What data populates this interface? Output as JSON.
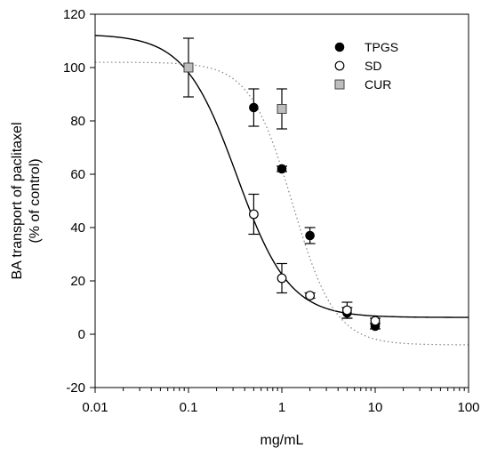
{
  "chart_data": {
    "type": "scatter",
    "title": "",
    "xlabel": "mg/mL",
    "ylabel_lines": [
      "BA transport of paclitaxel",
      "(% of control)"
    ],
    "x_scale": "log",
    "xlim": [
      0.01,
      100
    ],
    "ylim": [
      -20,
      120
    ],
    "x_ticks": [
      {
        "value": 0.01,
        "label": "0.01"
      },
      {
        "value": 0.1,
        "label": "0.1"
      },
      {
        "value": 1,
        "label": "1"
      },
      {
        "value": 10,
        "label": "10"
      },
      {
        "value": 100,
        "label": "100"
      }
    ],
    "y_ticks": [
      {
        "value": -20,
        "label": "-20"
      },
      {
        "value": 0,
        "label": "0"
      },
      {
        "value": 20,
        "label": "20"
      },
      {
        "value": 40,
        "label": "40"
      },
      {
        "value": 60,
        "label": "60"
      },
      {
        "value": 80,
        "label": "80"
      },
      {
        "value": 100,
        "label": "100"
      },
      {
        "value": 120,
        "label": "120"
      }
    ],
    "grid": false,
    "legend_position": "top-right",
    "series": [
      {
        "name": "TPGS",
        "marker": "filled-circle",
        "color": "#000000",
        "points": [
          {
            "x": 0.5,
            "y": 85,
            "err": 7
          },
          {
            "x": 1,
            "y": 62,
            "err": 1
          },
          {
            "x": 2,
            "y": 37,
            "err": 3
          },
          {
            "x": 5,
            "y": 8,
            "err": 2
          },
          {
            "x": 10,
            "y": 3,
            "err": 1
          }
        ]
      },
      {
        "name": "SD",
        "marker": "open-circle",
        "color": "#000000",
        "points": [
          {
            "x": 0.5,
            "y": 45,
            "err": 7.5
          },
          {
            "x": 1,
            "y": 21,
            "err": 5.5
          },
          {
            "x": 2,
            "y": 14.5,
            "err": 1
          },
          {
            "x": 5,
            "y": 9,
            "err": 3
          },
          {
            "x": 10,
            "y": 5,
            "err": 1
          }
        ]
      },
      {
        "name": "CUR",
        "marker": "gray-square",
        "color": "#bdbdbd",
        "points": [
          {
            "x": 0.1,
            "y": 100,
            "err": 11
          },
          {
            "x": 1,
            "y": 84.5,
            "err": 7.5
          }
        ]
      }
    ],
    "fit_curves": [
      {
        "style": "solid",
        "color": "#000000",
        "top": 112.5,
        "bottom": 6.3,
        "x50": 0.33,
        "hill": 1.55
      },
      {
        "style": "dotted",
        "color": "#808080",
        "top": 102,
        "bottom": -4,
        "x50": 1.3,
        "hill": 1.9
      }
    ]
  }
}
